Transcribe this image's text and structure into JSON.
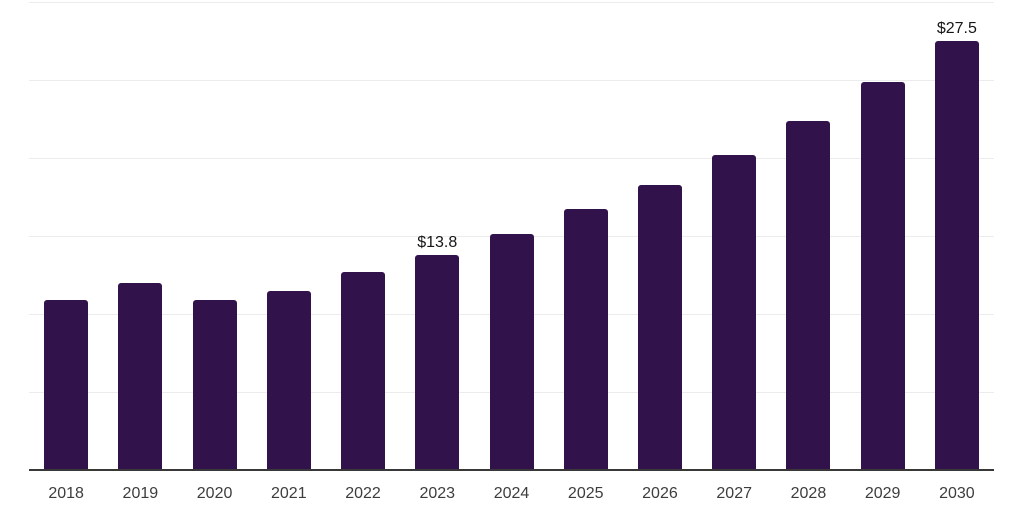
{
  "chart_data": {
    "type": "bar",
    "title": "",
    "xlabel": "",
    "ylabel": "",
    "categories": [
      "2018",
      "2019",
      "2020",
      "2021",
      "2022",
      "2023",
      "2024",
      "2025",
      "2026",
      "2027",
      "2028",
      "2029",
      "2030"
    ],
    "series": [
      {
        "name": "market-value-usd-billion",
        "values": [
          10.9,
          12.0,
          10.9,
          11.5,
          12.7,
          13.8,
          15.1,
          16.7,
          18.3,
          20.2,
          22.4,
          24.9,
          27.5
        ]
      }
    ],
    "data_labels": [
      "",
      "",
      "",
      "",
      "",
      "$13.8",
      "",
      "",
      "",
      "",
      "",
      "",
      "$27.5"
    ],
    "ylim": [
      0,
      30
    ],
    "gridline_step": 5,
    "grid": "horizontal-only",
    "legend_position": "none",
    "y_axis_tick_labels_visible": false,
    "colors": {
      "bar_fill": "#32124B",
      "gridline": "#ececec",
      "x_axis_line": "#383838",
      "x_tick_label": "#3d3d3d",
      "data_label": "#161616",
      "background": "#ffffff"
    }
  }
}
